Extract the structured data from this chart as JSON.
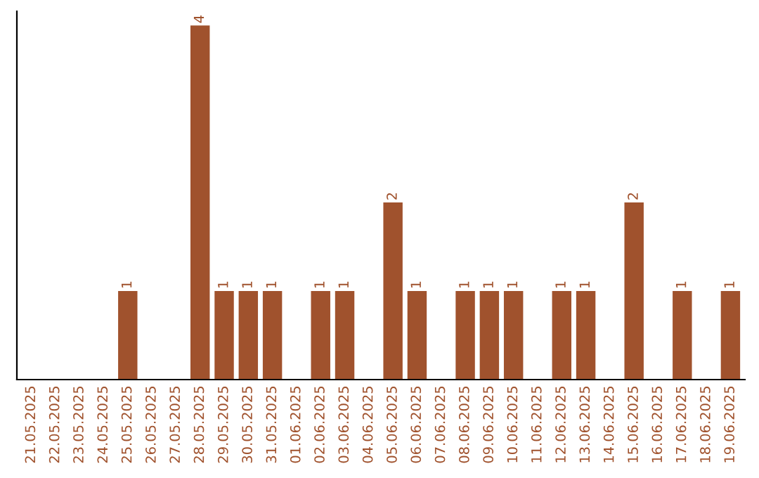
{
  "chart_data": {
    "type": "bar",
    "categories": [
      "21.05.2025",
      "22.05.2025",
      "23.05.2025",
      "24.05.2025",
      "25.05.2025",
      "26.05.2025",
      "27.05.2025",
      "28.05.2025",
      "29.05.2025",
      "30.05.2025",
      "31.05.2025",
      "01.06.2025",
      "02.06.2025",
      "03.06.2025",
      "04.06.2025",
      "05.06.2025",
      "06.06.2025",
      "07.06.2025",
      "08.06.2025",
      "09.06.2025",
      "10.06.2025",
      "11.06.2025",
      "12.06.2025",
      "13.06.2025",
      "14.06.2025",
      "15.06.2025",
      "16.06.2025",
      "17.06.2025",
      "18.06.2025",
      "19.06.2025"
    ],
    "values": [
      0,
      0,
      0,
      0,
      1,
      0,
      0,
      4,
      1,
      1,
      1,
      0,
      1,
      1,
      0,
      2,
      1,
      0,
      1,
      1,
      1,
      0,
      1,
      1,
      0,
      2,
      0,
      1,
      0,
      1
    ],
    "value_labels": [
      null,
      null,
      null,
      null,
      "1",
      null,
      null,
      "4",
      "1",
      "1",
      "1",
      null,
      "1",
      "1",
      null,
      "2",
      "1",
      null,
      "1",
      "1",
      "1",
      null,
      "1",
      "1",
      null,
      "2",
      null,
      "1",
      null,
      "1"
    ],
    "color": "#a0522d",
    "tick_labels": "x",
    "grid": false,
    "legend": false
  }
}
